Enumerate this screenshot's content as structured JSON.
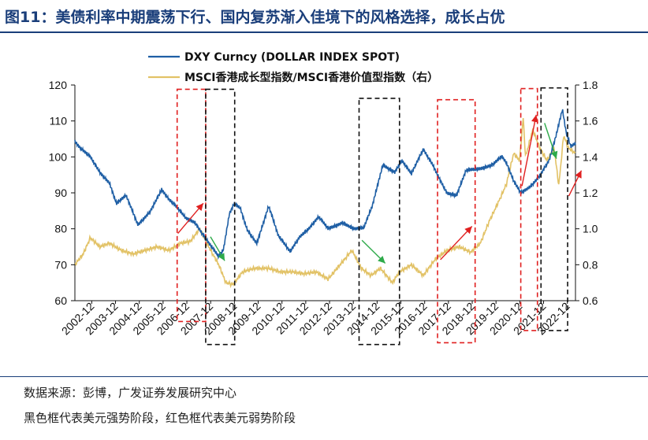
{
  "title": "图11：美债利率中期震荡下行、国内复苏渐入佳境下的风格选择，成长占优",
  "source": "数据来源：彭博，广发证券发展研究中心",
  "note": "黑色框代表美元强势阶段，红色框代表美元弱势阶段",
  "colors": {
    "title": "#1a3e7a",
    "dxy": "#1f5fa5",
    "msci": "#e2c266",
    "red": "#e02020",
    "green": "#2eaa4a",
    "black": "#111111"
  },
  "chart_data": {
    "type": "line",
    "x_ticks": [
      "2002-12",
      "2003-12",
      "2004-12",
      "2005-12",
      "2006-12",
      "2007-12",
      "2008-12",
      "2009-12",
      "2010-12",
      "2011-12",
      "2012-12",
      "2013-12",
      "2014-12",
      "2015-12",
      "2016-12",
      "2017-12",
      "2018-12",
      "2019-12",
      "2020-12",
      "2021-12",
      "2022-12"
    ],
    "y_left": {
      "ticks": [
        "60",
        "70",
        "80",
        "90",
        "100",
        "110",
        "120"
      ],
      "lim": [
        60,
        120
      ]
    },
    "y_right": {
      "ticks": [
        "0.6",
        "0.8",
        "1.0",
        "1.2",
        "1.4",
        "1.6",
        "1.8"
      ],
      "lim": [
        0.6,
        1.8
      ]
    },
    "x_range": [
      2002.25,
      2023.3
    ],
    "series": [
      {
        "name": "DXY Curncy (DOLLAR INDEX SPOT)",
        "axis": "left",
        "points": [
          [
            2002.25,
            104
          ],
          [
            2002.5,
            102
          ],
          [
            2002.9,
            100
          ],
          [
            2003.3,
            96
          ],
          [
            2003.7,
            93
          ],
          [
            2004.0,
            87
          ],
          [
            2004.4,
            89
          ],
          [
            2004.9,
            81
          ],
          [
            2005.4,
            85
          ],
          [
            2005.9,
            91
          ],
          [
            2006.2,
            88
          ],
          [
            2006.5,
            86
          ],
          [
            2006.9,
            83
          ],
          [
            2007.3,
            82
          ],
          [
            2007.7,
            78
          ],
          [
            2008.0,
            75
          ],
          [
            2008.3,
            72
          ],
          [
            2008.5,
            74
          ],
          [
            2008.75,
            84
          ],
          [
            2008.95,
            87
          ],
          [
            2009.2,
            86
          ],
          [
            2009.5,
            80
          ],
          [
            2009.9,
            76
          ],
          [
            2010.4,
            86
          ],
          [
            2010.8,
            78
          ],
          [
            2011.3,
            74
          ],
          [
            2011.7,
            78
          ],
          [
            2012.1,
            80
          ],
          [
            2012.5,
            83
          ],
          [
            2012.9,
            80
          ],
          [
            2013.5,
            82
          ],
          [
            2014.0,
            80
          ],
          [
            2014.4,
            80
          ],
          [
            2014.75,
            86
          ],
          [
            2015.2,
            98
          ],
          [
            2015.7,
            96
          ],
          [
            2016.0,
            99
          ],
          [
            2016.4,
            95
          ],
          [
            2016.9,
            102
          ],
          [
            2017.3,
            98
          ],
          [
            2017.9,
            90
          ],
          [
            2018.3,
            89
          ],
          [
            2018.7,
            96
          ],
          [
            2019.3,
            97
          ],
          [
            2019.8,
            98
          ],
          [
            2020.2,
            100
          ],
          [
            2020.4,
            98
          ],
          [
            2020.7,
            93
          ],
          [
            2021.0,
            90
          ],
          [
            2021.4,
            92
          ],
          [
            2021.8,
            95
          ],
          [
            2022.2,
            99
          ],
          [
            2022.5,
            106
          ],
          [
            2022.75,
            113
          ],
          [
            2022.9,
            107
          ],
          [
            2023.1,
            103
          ],
          [
            2023.3,
            104
          ]
        ]
      },
      {
        "name": "MSCI香港成长型指数/MSCI香港价值型指数（右）",
        "axis": "right",
        "points": [
          [
            2002.25,
            0.8
          ],
          [
            2002.6,
            0.86
          ],
          [
            2002.9,
            0.95
          ],
          [
            2003.3,
            0.9
          ],
          [
            2003.7,
            0.92
          ],
          [
            2004.2,
            0.88
          ],
          [
            2004.7,
            0.86
          ],
          [
            2005.2,
            0.88
          ],
          [
            2005.7,
            0.9
          ],
          [
            2006.2,
            0.88
          ],
          [
            2006.7,
            0.92
          ],
          [
            2007.1,
            0.93
          ],
          [
            2007.5,
            1.0
          ],
          [
            2007.8,
            0.92
          ],
          [
            2008.0,
            0.87
          ],
          [
            2008.3,
            0.8
          ],
          [
            2008.6,
            0.7
          ],
          [
            2008.9,
            0.69
          ],
          [
            2009.3,
            0.76
          ],
          [
            2009.8,
            0.78
          ],
          [
            2010.4,
            0.78
          ],
          [
            2010.9,
            0.76
          ],
          [
            2011.4,
            0.76
          ],
          [
            2011.9,
            0.75
          ],
          [
            2012.4,
            0.76
          ],
          [
            2012.9,
            0.72
          ],
          [
            2013.4,
            0.8
          ],
          [
            2013.9,
            0.88
          ],
          [
            2014.3,
            0.78
          ],
          [
            2014.7,
            0.74
          ],
          [
            2015.1,
            0.78
          ],
          [
            2015.6,
            0.7
          ],
          [
            2015.9,
            0.76
          ],
          [
            2016.4,
            0.8
          ],
          [
            2016.9,
            0.74
          ],
          [
            2017.4,
            0.83
          ],
          [
            2017.9,
            0.88
          ],
          [
            2018.4,
            0.9
          ],
          [
            2018.9,
            0.87
          ],
          [
            2019.3,
            0.92
          ],
          [
            2019.7,
            1.05
          ],
          [
            2020.1,
            1.16
          ],
          [
            2020.4,
            1.25
          ],
          [
            2020.7,
            1.42
          ],
          [
            2020.95,
            1.38
          ],
          [
            2021.1,
            1.62
          ],
          [
            2021.2,
            1.4
          ],
          [
            2021.5,
            1.55
          ],
          [
            2021.8,
            1.45
          ],
          [
            2022.1,
            1.38
          ],
          [
            2022.4,
            1.45
          ],
          [
            2022.6,
            1.24
          ],
          [
            2022.8,
            1.52
          ],
          [
            2023.0,
            1.45
          ],
          [
            2023.3,
            1.42
          ]
        ]
      }
    ],
    "boxes": [
      {
        "color": "red",
        "x": [
          2006.55,
          2007.75
        ],
        "y": [
          54.2,
          118.8
        ]
      },
      {
        "color": "black",
        "x": [
          2007.75,
          2008.97
        ],
        "y": [
          47.8,
          118.8
        ]
      },
      {
        "color": "black",
        "x": [
          2014.2,
          2015.9
        ],
        "y": [
          47.8,
          116.3
        ]
      },
      {
        "color": "red",
        "x": [
          2017.5,
          2019.08
        ],
        "y": [
          48.3,
          115.9
        ]
      },
      {
        "color": "red",
        "x": [
          2021.0,
          2021.7
        ],
        "y": [
          51.7,
          119.0
        ]
      },
      {
        "color": "black",
        "x": [
          2021.85,
          2022.97
        ],
        "y": [
          51.7,
          119.2
        ]
      }
    ],
    "arrows": [
      {
        "color": "red",
        "from": [
          2006.58,
          78.7
        ],
        "to": [
          2007.65,
          87.1
        ]
      },
      {
        "color": "green",
        "from": [
          2007.95,
          77.8
        ],
        "to": [
          2008.55,
          71.1
        ]
      },
      {
        "color": "green",
        "from": [
          2014.32,
          76.8
        ],
        "to": [
          2015.3,
          70.4
        ]
      },
      {
        "color": "red",
        "from": [
          2017.62,
          71.4
        ],
        "to": [
          2018.95,
          80.7
        ]
      },
      {
        "color": "red",
        "from": [
          2021.05,
          91.9
        ],
        "to": [
          2021.65,
          111.7
        ]
      },
      {
        "color": "green",
        "from": [
          2022.0,
          109.4
        ],
        "to": [
          2022.5,
          99.5
        ]
      },
      {
        "color": "red",
        "from": [
          2023.02,
          89.1
        ],
        "to": [
          2023.55,
          96.2
        ]
      }
    ]
  }
}
